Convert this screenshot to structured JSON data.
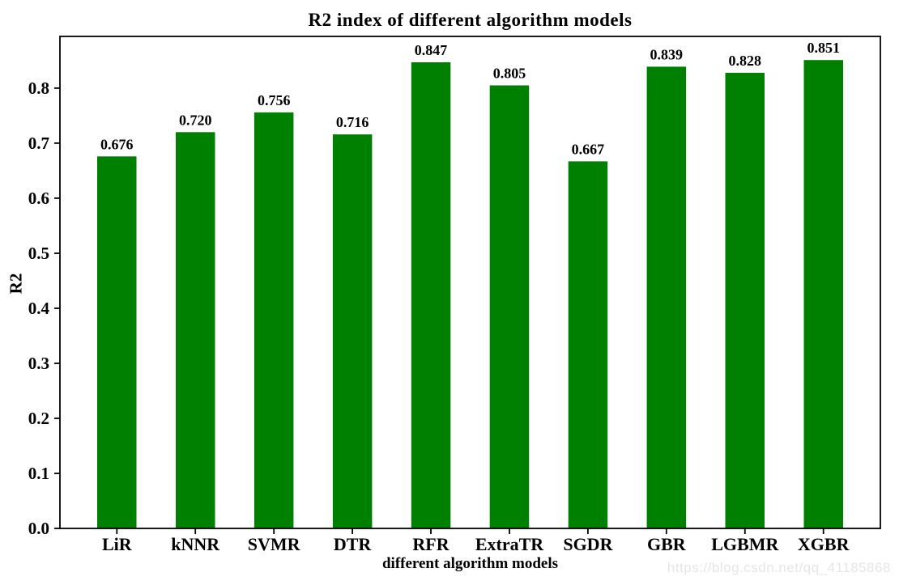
{
  "chart_data": {
    "type": "bar",
    "title": "R2 index of different algorithm models",
    "xlabel": "different algorithm models",
    "ylabel": "R2",
    "categories": [
      "LiR",
      "kNNR",
      "SVMR",
      "DTR",
      "RFR",
      "ExtraTR",
      "SGDR",
      "GBR",
      "LGBMR",
      "XGBR"
    ],
    "values": [
      0.676,
      0.72,
      0.756,
      0.716,
      0.847,
      0.805,
      0.667,
      0.839,
      0.828,
      0.851
    ],
    "value_labels": [
      "0.676",
      "0.720",
      "0.756",
      "0.716",
      "0.847",
      "0.805",
      "0.667",
      "0.839",
      "0.828",
      "0.851"
    ],
    "yticks": [
      "0.0",
      "0.1",
      "0.2",
      "0.3",
      "0.4",
      "0.5",
      "0.6",
      "0.7",
      "0.8"
    ],
    "ylim": [
      0,
      0.894
    ],
    "grid": false,
    "legend_position": "none",
    "bar_color": "#008000",
    "axis_color": "#000000",
    "background_color": "#ffffff"
  },
  "watermark": {
    "text": "https://blog.csdn.net/qq_41185868",
    "color": "#e6e6e9"
  }
}
